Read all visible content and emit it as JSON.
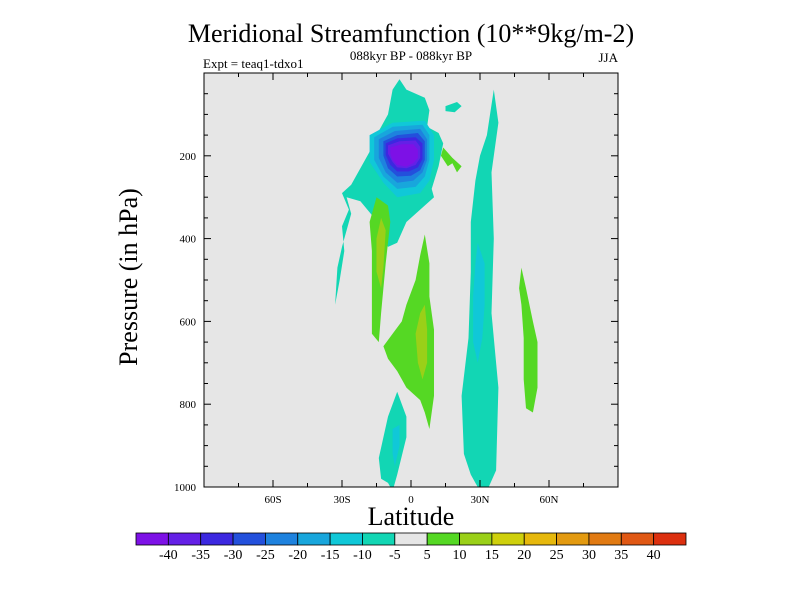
{
  "chart_data": {
    "type": "contour",
    "title": "Meridional Streamfunction (10**9kg/m-2)",
    "subtitle": "088kyr BP - 088kyr BP",
    "left_label": "Expt = teaq1-tdxo1",
    "right_label": "JJA",
    "xlabel": "Latitude",
    "ylabel": "Pressure (in hPa)",
    "xlim": [
      -90,
      90
    ],
    "ylim": [
      1000,
      0
    ],
    "x_ticks": [
      {
        "value": -60,
        "label": "60S"
      },
      {
        "value": -30,
        "label": "30S"
      },
      {
        "value": 0,
        "label": "0"
      },
      {
        "value": 30,
        "label": "30N"
      },
      {
        "value": 60,
        "label": "60N"
      }
    ],
    "y_ticks": [
      {
        "value": 200,
        "label": "200"
      },
      {
        "value": 400,
        "label": "400"
      },
      {
        "value": 600,
        "label": "600"
      },
      {
        "value": 800,
        "label": "800"
      },
      {
        "value": 1000,
        "label": "1000"
      }
    ],
    "contour_levels": [
      -40,
      -35,
      -30,
      -25,
      -20,
      -15,
      -10,
      -5,
      5,
      10,
      15,
      20,
      25,
      30,
      35,
      40
    ],
    "level_labels": [
      "-40",
      "-35",
      "-30",
      "-25",
      "-20",
      "-15",
      "-10",
      "-5",
      "5",
      "10",
      "15",
      "20",
      "25",
      "30",
      "35",
      "40"
    ],
    "colors": [
      "#7d11e6",
      "#6420e6",
      "#3c28e0",
      "#2350dc",
      "#1e82de",
      "#18a6dc",
      "#10c8d8",
      "#12d6b4",
      "#e6e6e6",
      "#55d824",
      "#9ad018",
      "#cfd00c",
      "#e6b80c",
      "#e39a10",
      "#e17a12",
      "#e05814",
      "#dc300f"
    ],
    "background_color": "#e6e6e6",
    "regions": [
      {
        "name": "upper-tropical-negative-cell",
        "level_index": 7,
        "points": [
          [
            -5,
            15
          ],
          [
            -2,
            40
          ],
          [
            6,
            60
          ],
          [
            8,
            90
          ],
          [
            7,
            130
          ],
          [
            12,
            145
          ],
          [
            14,
            170
          ],
          [
            12,
            225
          ],
          [
            9,
            280
          ],
          [
            10,
            300
          ],
          [
            4,
            330
          ],
          [
            -2,
            360
          ],
          [
            -6,
            410
          ],
          [
            -10,
            420
          ],
          [
            -16,
            350
          ],
          [
            -22,
            310
          ],
          [
            -28,
            300
          ],
          [
            -26,
            340
          ],
          [
            -30,
            420
          ],
          [
            -32,
            470
          ],
          [
            -33,
            560
          ],
          [
            -31,
            500
          ],
          [
            -29,
            430
          ],
          [
            -30,
            370
          ],
          [
            -27,
            330
          ],
          [
            -30,
            290
          ],
          [
            -26,
            270
          ],
          [
            -18,
            190
          ],
          [
            -14,
            140
          ],
          [
            -10,
            100
          ],
          [
            -8,
            40
          ]
        ]
      },
      {
        "name": "upper-cell-minus-10",
        "level_index": 6,
        "points": [
          [
            -18,
            150
          ],
          [
            -8,
            120
          ],
          [
            6,
            115
          ],
          [
            10,
            150
          ],
          [
            10,
            210
          ],
          [
            8,
            260
          ],
          [
            4,
            290
          ],
          [
            -6,
            300
          ],
          [
            -12,
            265
          ],
          [
            -18,
            215
          ]
        ]
      },
      {
        "name": "upper-cell-minus-15",
        "level_index": 5,
        "points": [
          [
            -16,
            155
          ],
          [
            -8,
            130
          ],
          [
            5,
            125
          ],
          [
            8,
            150
          ],
          [
            8,
            210
          ],
          [
            6,
            250
          ],
          [
            2,
            275
          ],
          [
            -6,
            280
          ],
          [
            -12,
            250
          ],
          [
            -16,
            210
          ]
        ]
      },
      {
        "name": "upper-cell-minus-20",
        "level_index": 4,
        "points": [
          [
            -14,
            160
          ],
          [
            -7,
            140
          ],
          [
            4,
            135
          ],
          [
            7,
            160
          ],
          [
            7,
            210
          ],
          [
            5,
            240
          ],
          [
            1,
            260
          ],
          [
            -6,
            265
          ],
          [
            -11,
            240
          ],
          [
            -14,
            205
          ]
        ]
      },
      {
        "name": "upper-cell-minus-25",
        "level_index": 3,
        "points": [
          [
            -12,
            165
          ],
          [
            -6,
            150
          ],
          [
            3,
            145
          ],
          [
            6,
            165
          ],
          [
            6,
            210
          ],
          [
            4,
            235
          ],
          [
            0,
            248
          ],
          [
            -6,
            250
          ],
          [
            -10,
            230
          ],
          [
            -12,
            200
          ]
        ]
      },
      {
        "name": "upper-cell-minus-30",
        "level_index": 2,
        "points": [
          [
            -11,
            170
          ],
          [
            -6,
            158
          ],
          [
            2,
            155
          ],
          [
            5,
            170
          ],
          [
            5,
            208
          ],
          [
            3,
            228
          ],
          [
            -1,
            238
          ],
          [
            -6,
            238
          ],
          [
            -9,
            222
          ],
          [
            -11,
            198
          ]
        ]
      },
      {
        "name": "upper-cell-minus-35",
        "level_index": 1,
        "points": [
          [
            -10,
            175
          ],
          [
            -5,
            165
          ],
          [
            2,
            163
          ],
          [
            4,
            178
          ],
          [
            4,
            205
          ],
          [
            2,
            222
          ],
          [
            -2,
            230
          ],
          [
            -6,
            228
          ],
          [
            -8,
            215
          ],
          [
            -10,
            195
          ]
        ]
      },
      {
        "name": "upper-cell-minus-40",
        "level_index": 0,
        "points": [
          [
            -9,
            180
          ],
          [
            -4,
            172
          ],
          [
            1,
            172
          ],
          [
            3,
            185
          ],
          [
            3,
            205
          ],
          [
            1,
            218
          ],
          [
            -2,
            226
          ],
          [
            -6,
            222
          ],
          [
            -8,
            210
          ],
          [
            -9,
            195
          ]
        ]
      },
      {
        "name": "ne-mid-positive-patch",
        "level_index": 9,
        "points": [
          [
            14,
            180
          ],
          [
            18,
            205
          ],
          [
            22,
            225
          ],
          [
            20,
            240
          ],
          [
            18,
            218
          ],
          [
            16,
            225
          ],
          [
            13,
            200
          ]
        ]
      },
      {
        "name": "small-neg-patch-20n",
        "level_index": 7,
        "points": [
          [
            15,
            80
          ],
          [
            20,
            70
          ],
          [
            22,
            80
          ],
          [
            19,
            95
          ],
          [
            15,
            92
          ]
        ]
      },
      {
        "name": "ne-negative-column",
        "level_index": 7,
        "points": [
          [
            36,
            40
          ],
          [
            38,
            120
          ],
          [
            35,
            240
          ],
          [
            36,
            400
          ],
          [
            35,
            580
          ],
          [
            38,
            760
          ],
          [
            37,
            960
          ],
          [
            33,
            1010
          ],
          [
            29,
            1000
          ],
          [
            26,
            970
          ],
          [
            23,
            920
          ],
          [
            22,
            780
          ],
          [
            25,
            640
          ],
          [
            26,
            480
          ],
          [
            26,
            360
          ],
          [
            28,
            260
          ],
          [
            30,
            200
          ],
          [
            33,
            150
          ]
        ]
      },
      {
        "name": "ne-negative-column-10",
        "level_index": 6,
        "points": [
          [
            29,
            410
          ],
          [
            32,
            460
          ],
          [
            32,
            560
          ],
          [
            31,
            640
          ],
          [
            29,
            700
          ],
          [
            27,
            650
          ],
          [
            27,
            540
          ],
          [
            28,
            460
          ]
        ]
      },
      {
        "name": "sw-positive-column",
        "level_index": 9,
        "points": [
          [
            -15,
            300
          ],
          [
            -10,
            320
          ],
          [
            -9,
            360
          ],
          [
            -11,
            460
          ],
          [
            -13,
            580
          ],
          [
            -14,
            650
          ],
          [
            -17,
            630
          ],
          [
            -17,
            540
          ],
          [
            -17,
            430
          ],
          [
            -18,
            360
          ]
        ]
      },
      {
        "name": "sw-positive-column-10",
        "level_index": 10,
        "points": [
          [
            -13,
            350
          ],
          [
            -11,
            380
          ],
          [
            -12,
            470
          ],
          [
            -13,
            520
          ],
          [
            -15,
            480
          ],
          [
            -15,
            400
          ]
        ]
      },
      {
        "name": "eq-positive-column",
        "level_index": 9,
        "points": [
          [
            6,
            390
          ],
          [
            8,
            460
          ],
          [
            8,
            540
          ],
          [
            10,
            620
          ],
          [
            10,
            690
          ],
          [
            10,
            720
          ],
          [
            10,
            780
          ],
          [
            8,
            860
          ],
          [
            6,
            820
          ],
          [
            4,
            790
          ],
          [
            -2,
            760
          ],
          [
            -6,
            720
          ],
          [
            -10,
            690
          ],
          [
            -12,
            660
          ],
          [
            -8,
            630
          ],
          [
            -4,
            600
          ],
          [
            -2,
            560
          ],
          [
            2,
            500
          ],
          [
            4,
            440
          ]
        ]
      },
      {
        "name": "eq-positive-column-10",
        "level_index": 10,
        "points": [
          [
            6,
            560
          ],
          [
            7,
            620
          ],
          [
            7,
            700
          ],
          [
            5,
            740
          ],
          [
            3,
            700
          ],
          [
            2,
            630
          ],
          [
            4,
            580
          ]
        ]
      },
      {
        "name": "ne-positive-streak",
        "level_index": 9,
        "points": [
          [
            48,
            470
          ],
          [
            50,
            520
          ],
          [
            53,
            600
          ],
          [
            55,
            650
          ],
          [
            55,
            760
          ],
          [
            53,
            820
          ],
          [
            50,
            810
          ],
          [
            49,
            740
          ],
          [
            49,
            640
          ],
          [
            48,
            560
          ],
          [
            47,
            520
          ]
        ]
      },
      {
        "name": "lower-negative-lobe",
        "level_index": 7,
        "points": [
          [
            -10,
            830
          ],
          [
            -6,
            770
          ],
          [
            -2,
            830
          ],
          [
            -2,
            880
          ],
          [
            -6,
            970
          ],
          [
            -8,
            1010
          ],
          [
            -10,
            990
          ],
          [
            -13,
            980
          ],
          [
            -14,
            930
          ],
          [
            -12,
            880
          ]
        ]
      },
      {
        "name": "lower-negative-lobe-10",
        "level_index": 6,
        "points": [
          [
            -8,
            860
          ],
          [
            -5,
            850
          ],
          [
            -5,
            900
          ],
          [
            -7,
            950
          ],
          [
            -8,
            920
          ]
        ]
      }
    ]
  }
}
